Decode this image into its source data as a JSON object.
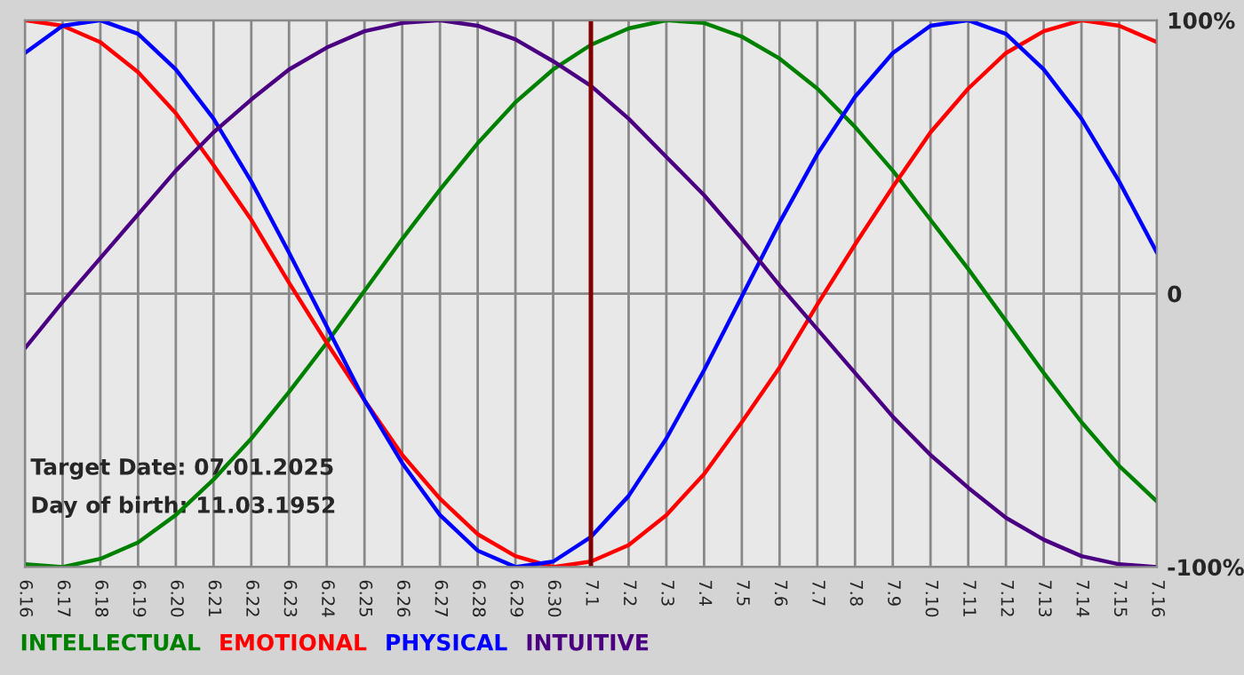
{
  "chart_data": {
    "type": "line",
    "categories": [
      "6.16",
      "6.17",
      "6.18",
      "6.19",
      "6.20",
      "6.21",
      "6.22",
      "6.23",
      "6.24",
      "6.25",
      "6.26",
      "6.27",
      "6.28",
      "6.29",
      "6.30",
      "7.1",
      "7.2",
      "7.3",
      "7.4",
      "7.5",
      "7.6",
      "7.7",
      "7.8",
      "7.9",
      "7.10",
      "7.11",
      "7.12",
      "7.13",
      "7.14",
      "7.15",
      "7.16"
    ],
    "series": [
      {
        "name": "INTELLECTUAL",
        "color": "#008000",
        "values": [
          -99,
          -100,
          -97,
          -91,
          -81,
          -68,
          -53,
          -36,
          -18,
          1,
          20,
          38,
          55,
          70,
          82,
          91,
          97,
          100,
          99,
          94,
          86,
          75,
          61,
          45,
          27,
          9,
          -10,
          -29,
          -47,
          -63,
          -76
        ]
      },
      {
        "name": "EMOTIONAL",
        "color": "#ff0000",
        "values": [
          100,
          98,
          92,
          81,
          66,
          47,
          27,
          4,
          -18,
          -39,
          -59,
          -75,
          -88,
          -96,
          -100,
          -98,
          -92,
          -81,
          -66,
          -47,
          -27,
          -4,
          18,
          39,
          59,
          75,
          88,
          96,
          100,
          98,
          92
        ]
      },
      {
        "name": "PHYSICAL",
        "color": "#0000ff",
        "values": [
          88,
          98,
          100,
          95,
          82,
          64,
          41,
          15,
          -12,
          -39,
          -62,
          -81,
          -94,
          -100,
          -98,
          -89,
          -74,
          -53,
          -28,
          -1,
          26,
          51,
          72,
          88,
          98,
          100,
          95,
          82,
          64,
          41,
          15
        ]
      },
      {
        "name": "INTUITIVE",
        "color": "#4b0082",
        "values": [
          -20,
          -3,
          13,
          29,
          45,
          59,
          71,
          82,
          90,
          96,
          99,
          100,
          98,
          93,
          85,
          76,
          64,
          50,
          36,
          20,
          3,
          -13,
          -29,
          -45,
          -59,
          -71,
          -82,
          -90,
          -96,
          -99,
          -100
        ]
      }
    ],
    "ylim": [
      -100,
      100
    ],
    "yticks": [
      {
        "value": -100,
        "label": "-100%"
      },
      0,
      {
        "value": 100,
        "label": "100%"
      }
    ],
    "ref_lines": [
      {
        "axis": "x",
        "value": "7.1",
        "color": "#800000"
      }
    ],
    "annotations": [
      "Target Date: 07.01.2025",
      "Day of birth: 11.03.1952"
    ],
    "grid": true,
    "legend": "bottom",
    "marker": "none",
    "line_style": "solid"
  }
}
